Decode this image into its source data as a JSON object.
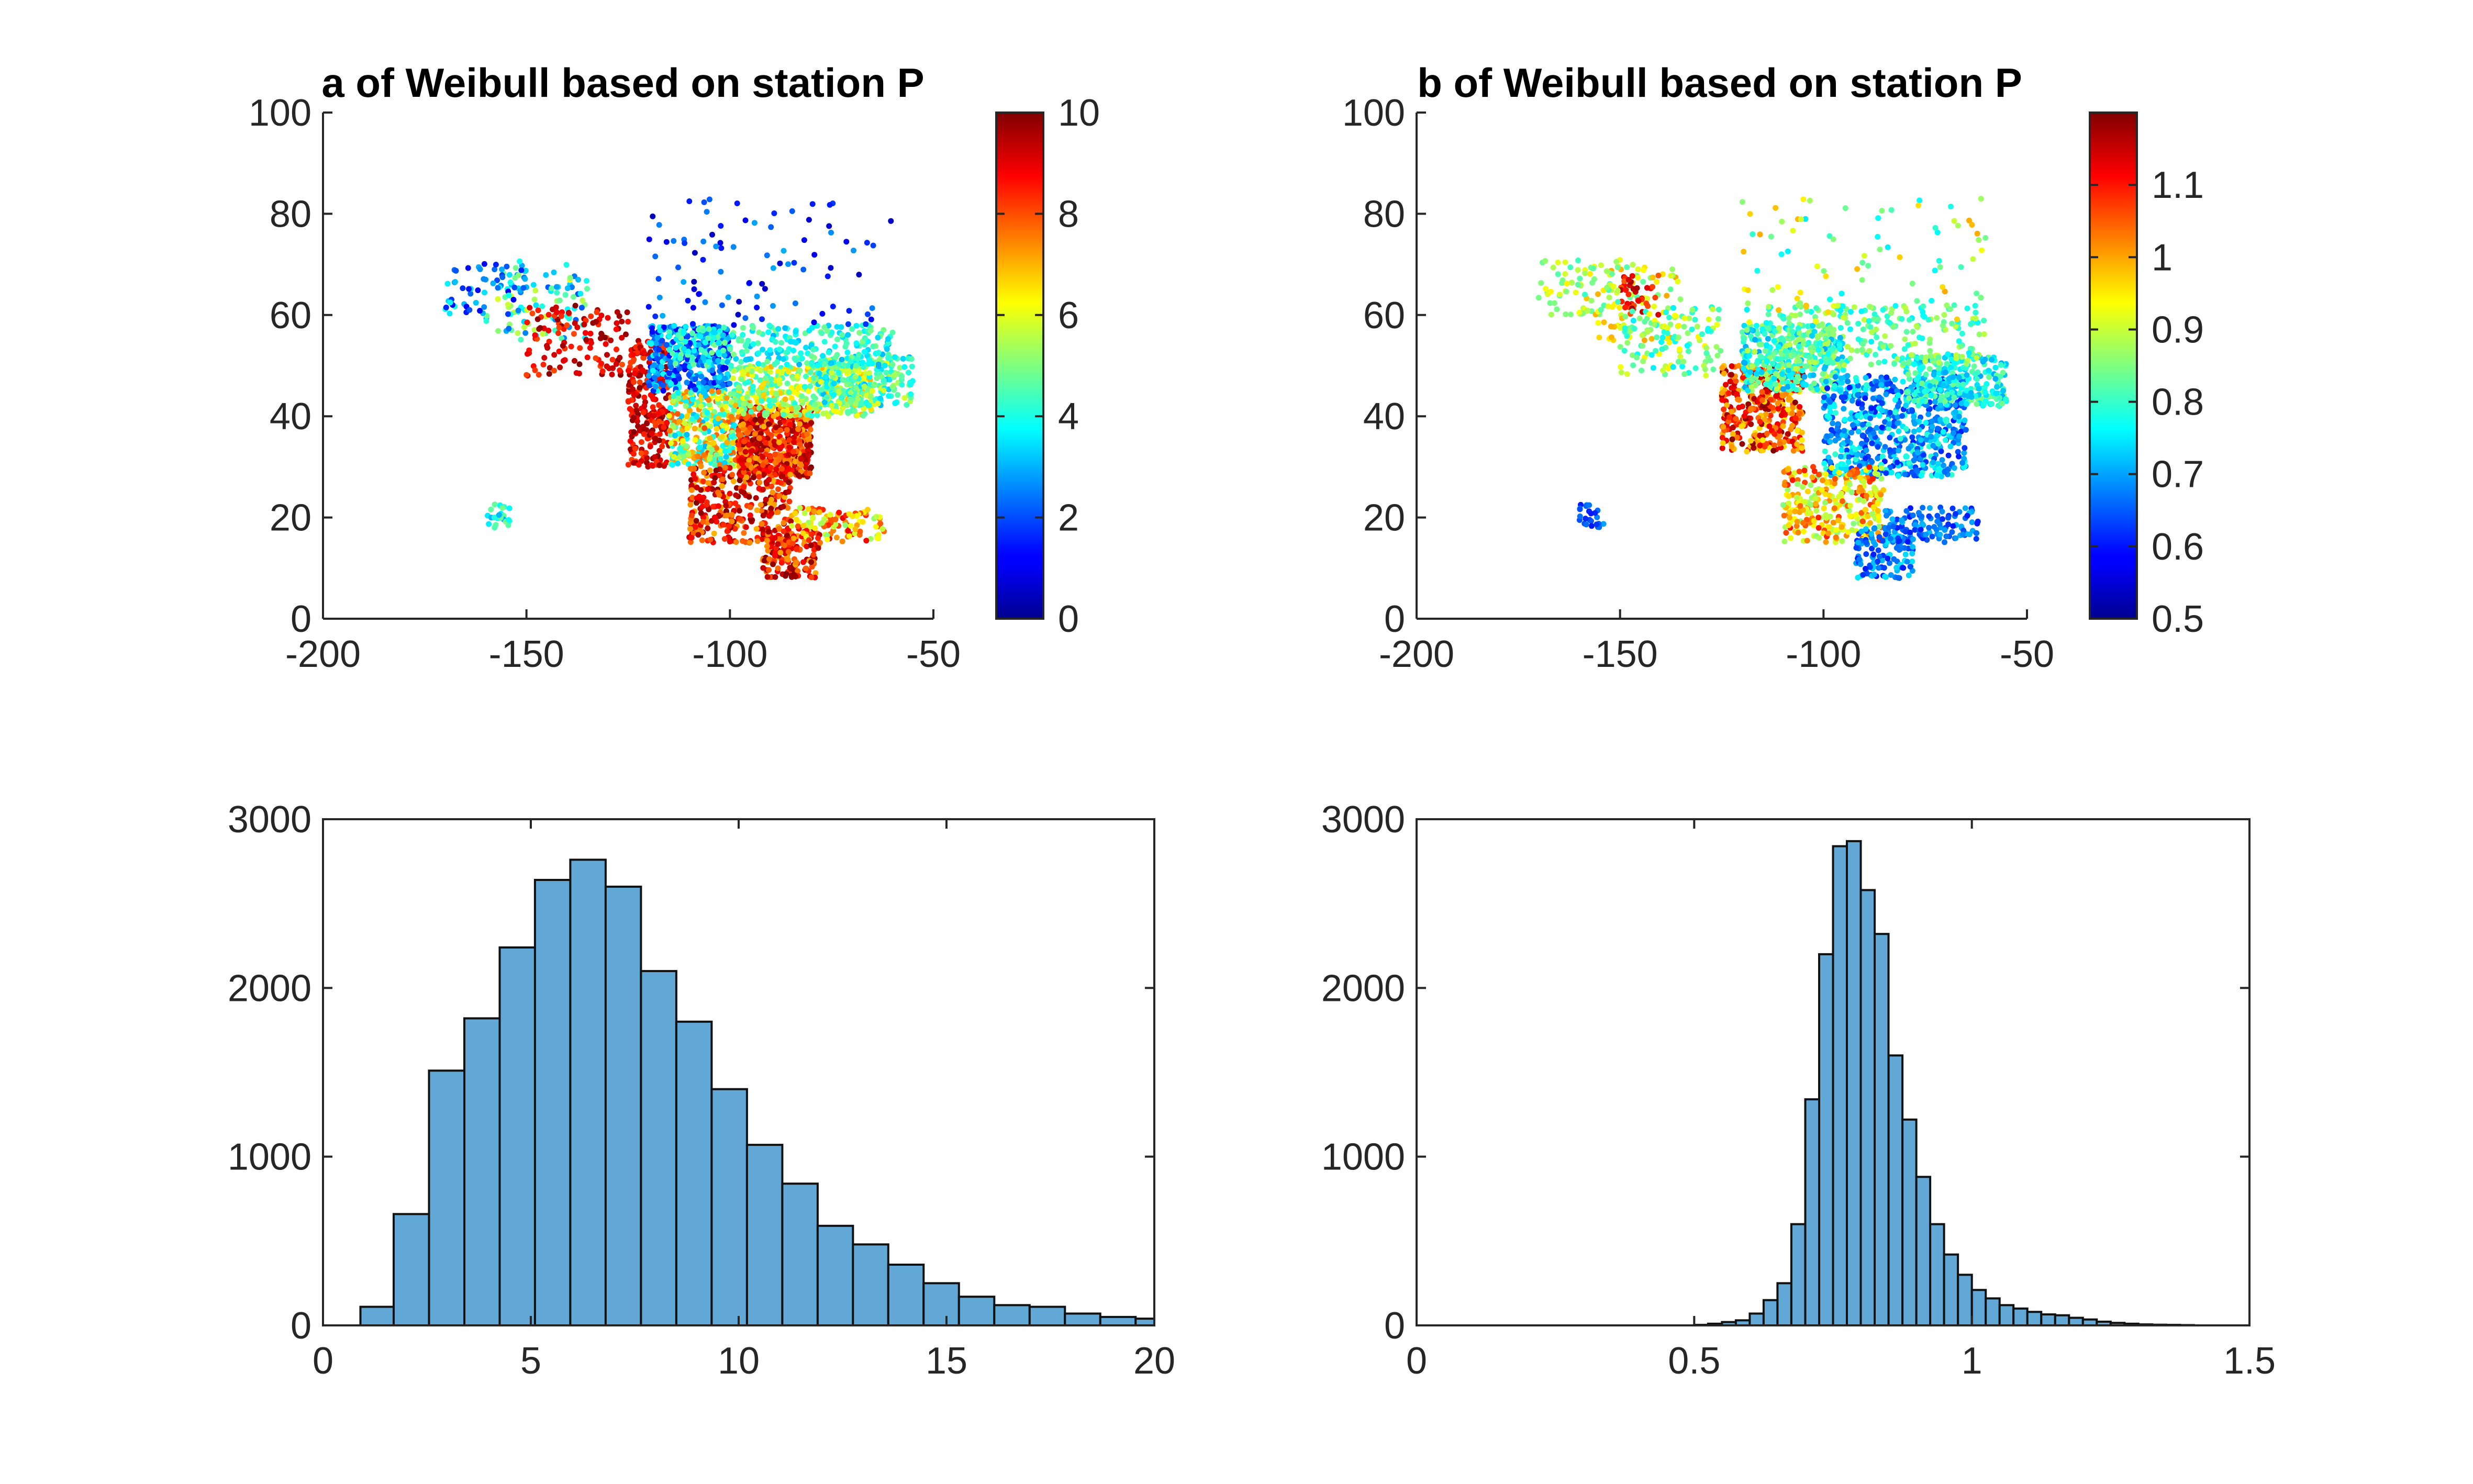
{
  "chart_data": [
    {
      "type": "scatter",
      "title": "a of Weibull based on station P",
      "xlim": [
        -200,
        -50
      ],
      "ylim": [
        0,
        100
      ],
      "xticks": [
        -200,
        -150,
        -100,
        -50
      ],
      "yticks": [
        0,
        20,
        40,
        60,
        80,
        100
      ],
      "grid": false,
      "colorbar": {
        "colormap": "jet",
        "range": [
          0,
          10
        ],
        "ticks": [
          0,
          2,
          4,
          6,
          8,
          10
        ]
      },
      "point_regions": [
        {
          "lon": [
            -160,
            -135
          ],
          "lat": [
            55,
            70
          ],
          "value": [
            2,
            6
          ],
          "n": 90
        },
        {
          "lon": [
            -170,
            -150
          ],
          "lat": [
            60,
            71
          ],
          "value": [
            1,
            4
          ],
          "n": 60
        },
        {
          "lon": [
            -150,
            -125
          ],
          "lat": [
            48,
            62
          ],
          "value": [
            8,
            10
          ],
          "n": 120
        },
        {
          "lon": [
            -125,
            -115
          ],
          "lat": [
            30,
            55
          ],
          "value": [
            8,
            10
          ],
          "n": 260
        },
        {
          "lon": [
            -120,
            -100
          ],
          "lat": [
            45,
            58
          ],
          "value": [
            1,
            4
          ],
          "n": 380
        },
        {
          "lon": [
            -115,
            -95
          ],
          "lat": [
            30,
            45
          ],
          "value": [
            3,
            8
          ],
          "n": 420
        },
        {
          "lon": [
            -98,
            -80
          ],
          "lat": [
            28,
            42
          ],
          "value": [
            7,
            10
          ],
          "n": 520
        },
        {
          "lon": [
            -100,
            -65
          ],
          "lat": [
            40,
            50
          ],
          "value": [
            4,
            7
          ],
          "n": 380
        },
        {
          "lon": [
            -80,
            -55
          ],
          "lat": [
            42,
            52
          ],
          "value": [
            3,
            6
          ],
          "n": 260
        },
        {
          "lon": [
            -115,
            -60
          ],
          "lat": [
            50,
            58
          ],
          "value": [
            3,
            5
          ],
          "n": 250
        },
        {
          "lon": [
            -110,
            -85
          ],
          "lat": [
            15,
            30
          ],
          "value": [
            7,
            10
          ],
          "n": 320
        },
        {
          "lon": [
            -92,
            -78
          ],
          "lat": [
            8,
            18
          ],
          "value": [
            7,
            10
          ],
          "n": 150
        },
        {
          "lon": [
            -85,
            -62
          ],
          "lat": [
            15,
            22
          ],
          "value": [
            5,
            9
          ],
          "n": 110
        },
        {
          "lon": [
            -120,
            -60
          ],
          "lat": [
            58,
            83
          ],
          "value": [
            0.5,
            3
          ],
          "n": 90
        },
        {
          "lon": [
            -160,
            -154
          ],
          "lat": [
            18,
            23
          ],
          "value": [
            3,
            5
          ],
          "n": 25
        }
      ]
    },
    {
      "type": "scatter",
      "title": "b of Weibull based on station P",
      "xlim": [
        -200,
        -50
      ],
      "ylim": [
        0,
        100
      ],
      "xticks": [
        -200,
        -150,
        -100,
        -50
      ],
      "yticks": [
        0,
        20,
        40,
        60,
        80,
        100
      ],
      "grid": false,
      "colorbar": {
        "colormap": "jet",
        "range": [
          0.5,
          1.2
        ],
        "ticks": [
          0.5,
          0.6,
          0.7,
          0.8,
          0.9,
          1,
          1.1
        ]
      },
      "point_regions": [
        {
          "lon": [
            -160,
            -135
          ],
          "lat": [
            55,
            70
          ],
          "value": [
            0.8,
            1.0
          ],
          "n": 90
        },
        {
          "lon": [
            -150,
            -140
          ],
          "lat": [
            60,
            68
          ],
          "value": [
            1.05,
            1.2
          ],
          "n": 40
        },
        {
          "lon": [
            -170,
            -150
          ],
          "lat": [
            60,
            71
          ],
          "value": [
            0.8,
            0.95
          ],
          "n": 60
        },
        {
          "lon": [
            -150,
            -125
          ],
          "lat": [
            48,
            62
          ],
          "value": [
            0.75,
            0.95
          ],
          "n": 120
        },
        {
          "lon": [
            -125,
            -105
          ],
          "lat": [
            33,
            50
          ],
          "value": [
            0.95,
            1.2
          ],
          "n": 380
        },
        {
          "lon": [
            -120,
            -95
          ],
          "lat": [
            45,
            58
          ],
          "value": [
            0.7,
            0.9
          ],
          "n": 380
        },
        {
          "lon": [
            -100,
            -65
          ],
          "lat": [
            28,
            48
          ],
          "value": [
            0.6,
            0.8
          ],
          "n": 650
        },
        {
          "lon": [
            -80,
            -55
          ],
          "lat": [
            42,
            52
          ],
          "value": [
            0.7,
            0.85
          ],
          "n": 260
        },
        {
          "lon": [
            -115,
            -60
          ],
          "lat": [
            50,
            62
          ],
          "value": [
            0.75,
            0.9
          ],
          "n": 260
        },
        {
          "lon": [
            -110,
            -85
          ],
          "lat": [
            15,
            30
          ],
          "value": [
            0.85,
            1.1
          ],
          "n": 300
        },
        {
          "lon": [
            -92,
            -78
          ],
          "lat": [
            8,
            18
          ],
          "value": [
            0.6,
            0.75
          ],
          "n": 140
        },
        {
          "lon": [
            -85,
            -62
          ],
          "lat": [
            15,
            22
          ],
          "value": [
            0.6,
            0.72
          ],
          "n": 110
        },
        {
          "lon": [
            -120,
            -60
          ],
          "lat": [
            58,
            83
          ],
          "value": [
            0.75,
            1.0
          ],
          "n": 90
        },
        {
          "lon": [
            -160,
            -154
          ],
          "lat": [
            18,
            23
          ],
          "value": [
            0.6,
            0.7
          ],
          "n": 25
        }
      ]
    },
    {
      "type": "bar",
      "title": "",
      "xlabel": "",
      "ylabel": "",
      "xlim": [
        0,
        20
      ],
      "ylim": [
        0,
        3000
      ],
      "xticks": [
        0,
        5,
        10,
        15,
        20
      ],
      "yticks": [
        0,
        1000,
        2000,
        3000
      ],
      "bin_edges": [
        0.9,
        1.7,
        2.55,
        3.4,
        4.25,
        5.1,
        5.95,
        6.8,
        7.65,
        8.5,
        9.35,
        10.2,
        11.05,
        11.9,
        12.75,
        13.6,
        14.45,
        15.3,
        16.15,
        17.0,
        17.85,
        18.7,
        19.55,
        20
      ],
      "values": [
        110,
        660,
        1510,
        1820,
        2240,
        2640,
        2760,
        2600,
        2100,
        1800,
        1400,
        1070,
        840,
        590,
        480,
        360,
        250,
        170,
        120,
        110,
        70,
        50,
        40
      ]
    },
    {
      "type": "bar",
      "title": "",
      "xlabel": "",
      "ylabel": "",
      "xlim": [
        0,
        1.5
      ],
      "ylim": [
        0,
        3000
      ],
      "xticks": [
        0,
        0.5,
        1,
        1.5
      ],
      "yticks": [
        0,
        1000,
        2000,
        3000
      ],
      "bin_edges": [
        0.5,
        0.525,
        0.55,
        0.575,
        0.6,
        0.625,
        0.65,
        0.675,
        0.7,
        0.725,
        0.75,
        0.775,
        0.8,
        0.825,
        0.85,
        0.875,
        0.9,
        0.925,
        0.95,
        0.975,
        1.0,
        1.025,
        1.05,
        1.075,
        1.1,
        1.125,
        1.15,
        1.175,
        1.2,
        1.225,
        1.25,
        1.275,
        1.3,
        1.325,
        1.35,
        1.375,
        1.4
      ],
      "values": [
        3,
        10,
        20,
        30,
        70,
        150,
        250,
        600,
        1340,
        2200,
        2840,
        2870,
        2580,
        2320,
        1600,
        1220,
        880,
        600,
        420,
        300,
        210,
        160,
        120,
        100,
        80,
        65,
        60,
        45,
        35,
        22,
        15,
        10,
        6,
        4,
        3,
        2
      ]
    }
  ]
}
